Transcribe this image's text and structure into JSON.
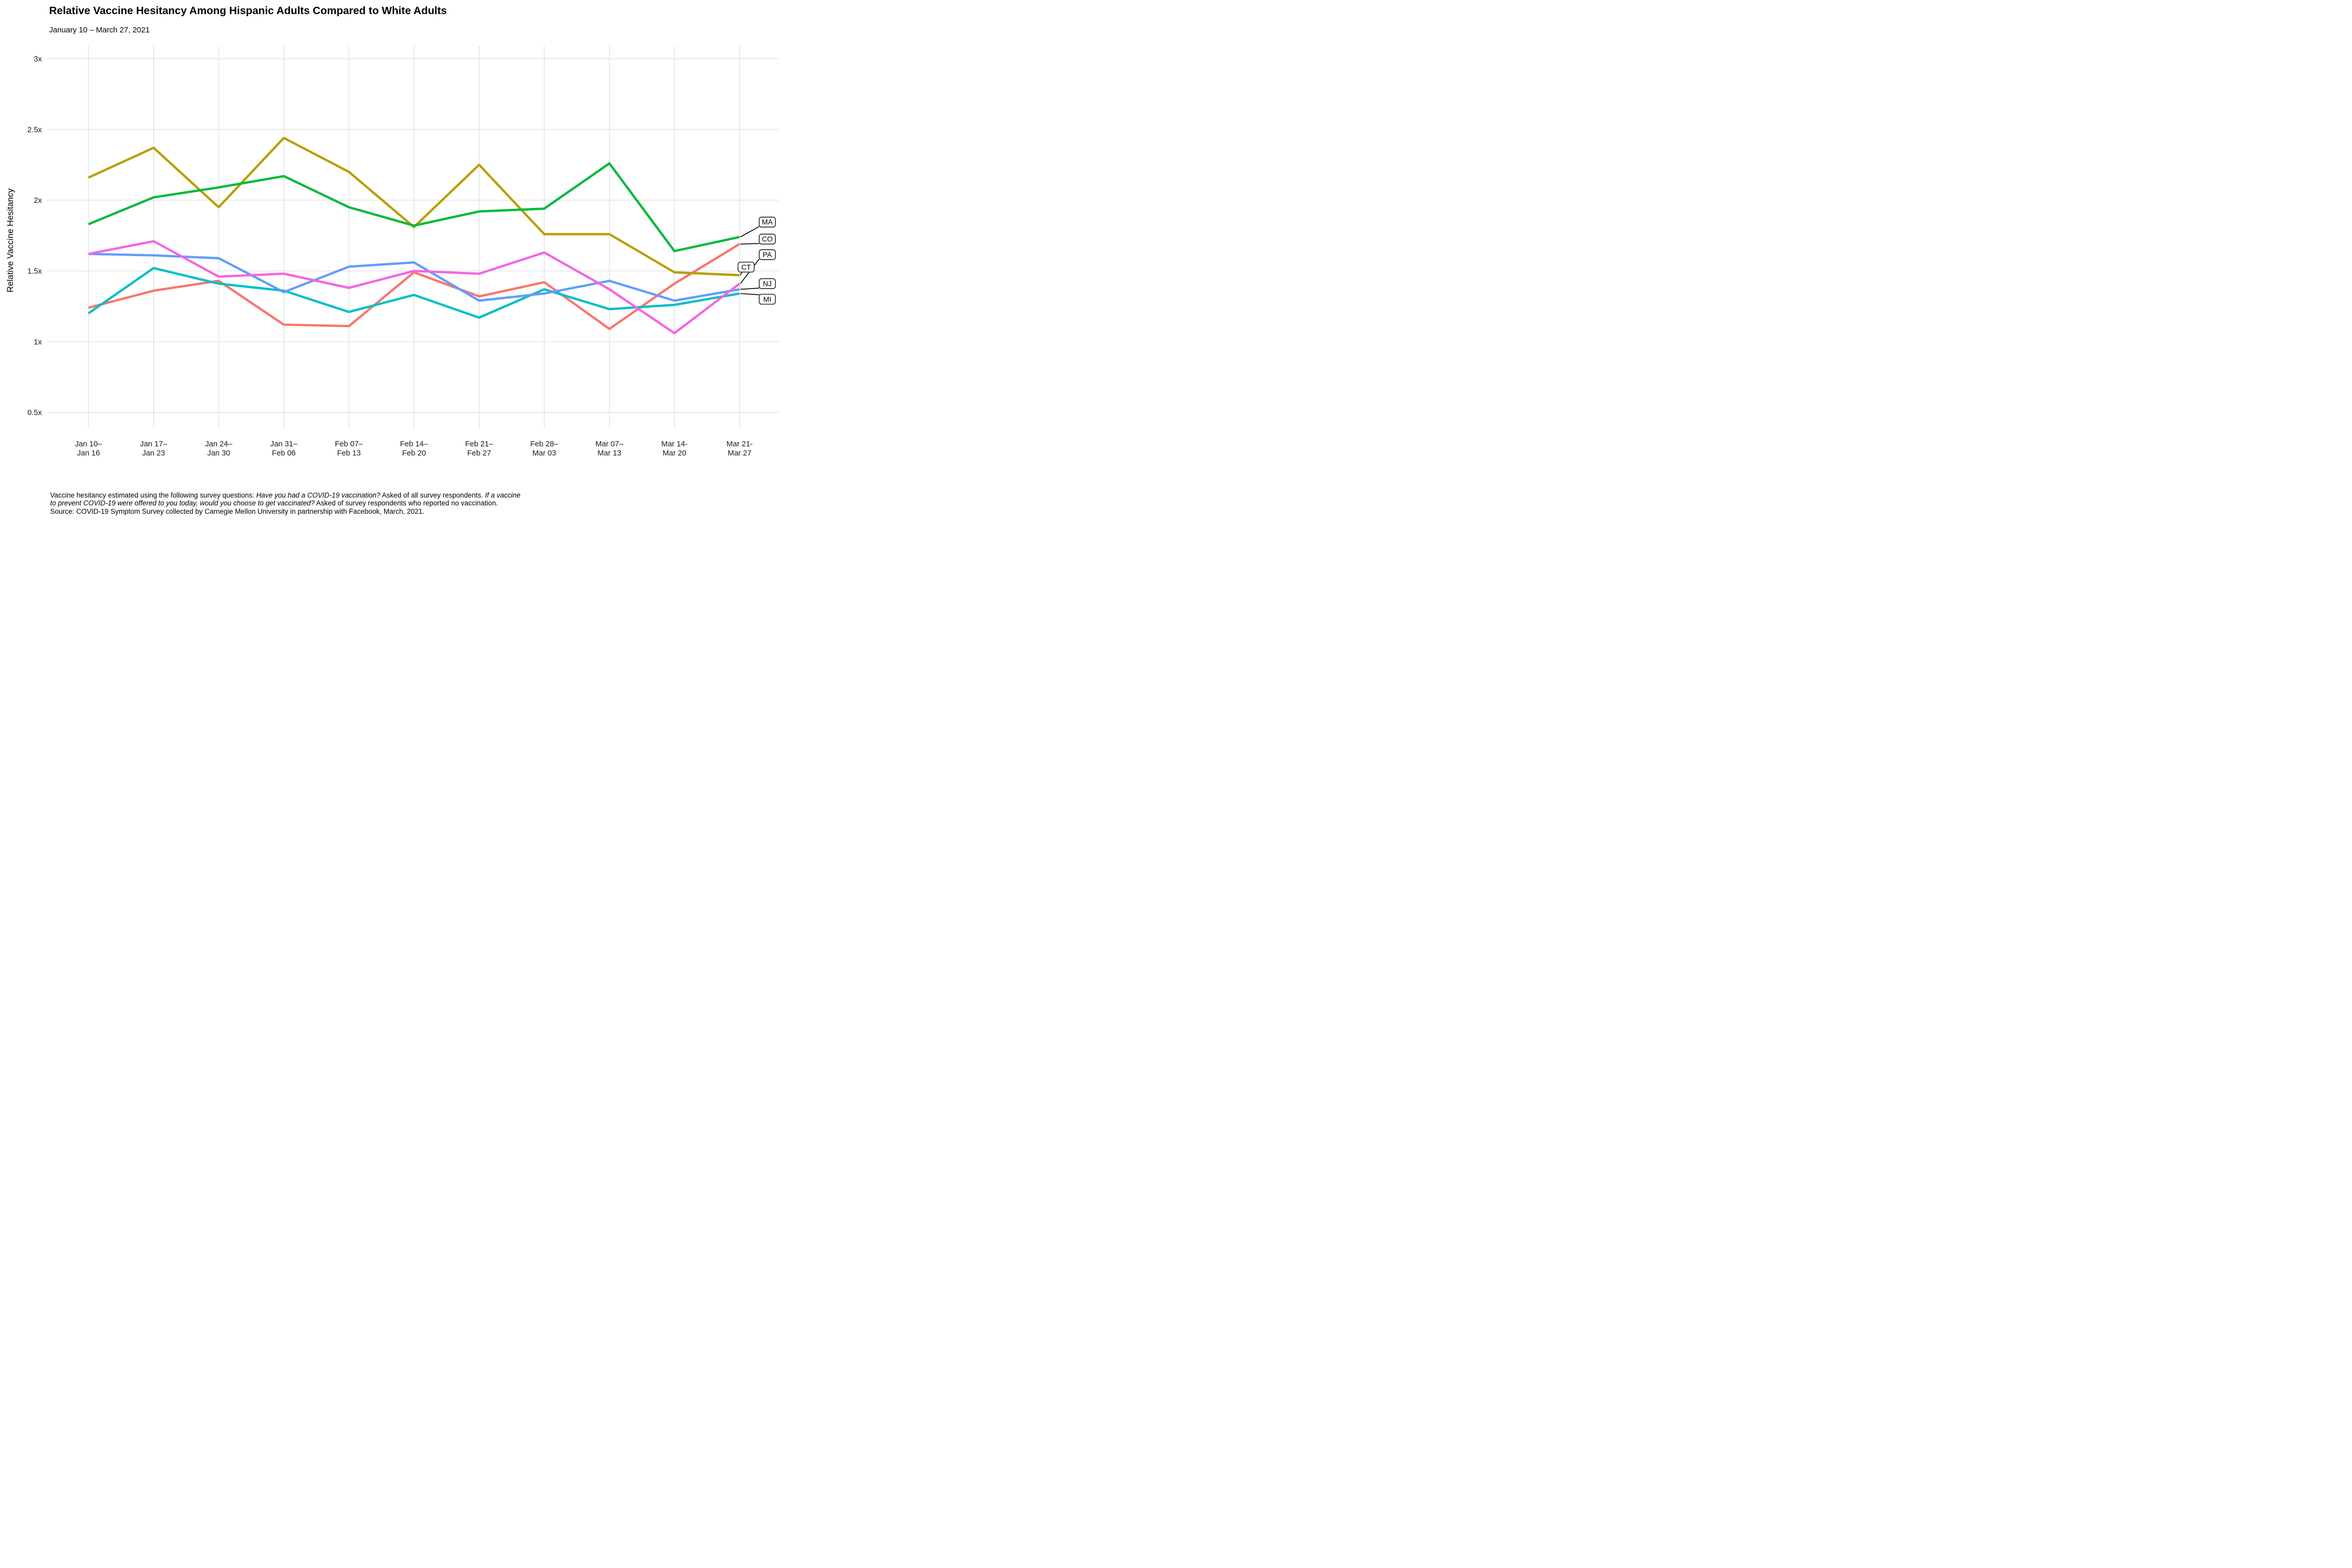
{
  "title": "Relative Vaccine Hesitancy Among Hispanic Adults Compared to White Adults",
  "subtitle": "January 10 – March 27, 2021",
  "footnote_lines": [
    [
      {
        "t": "Vaccine hesitancy estimated using the following survey questions: "
      },
      {
        "t": "Have you had a COVID-19 vaccination?",
        "i": true
      },
      {
        "t": " Asked of all survey respondents. "
      },
      {
        "t": "If a vaccine",
        "i": true
      }
    ],
    [
      {
        "t": "to prevent COVID-19 were offered to you today, would you choose to get vaccinated?",
        "i": true
      },
      {
        "t": " Asked of survey respondents who reported no vaccination."
      }
    ],
    [
      {
        "t": "Source: COVID-19 Symptom Survey collected by Carnegie Mellon University in partnership with Facebook, March, 2021."
      }
    ]
  ],
  "chart_data": {
    "type": "line",
    "title": "Relative Vaccine Hesitancy Among Hispanic Adults Compared to White Adults",
    "subtitle": "January 10 – March 27, 2021",
    "xlabel": "",
    "ylabel": "Relative Vaccine Hesitancy",
    "ylim": [
      0.5,
      3
    ],
    "grid": true,
    "legend_position": "right-edge-labels",
    "grid_color": "#e4e4e4",
    "label_box_color": "#000000",
    "y_ticks": [
      {
        "value": 0.5,
        "label": "0.5x"
      },
      {
        "value": 1,
        "label": "1x"
      },
      {
        "value": 1.5,
        "label": "1.5x"
      },
      {
        "value": 2,
        "label": "2x"
      },
      {
        "value": 2.5,
        "label": "2.5x"
      },
      {
        "value": 3,
        "label": "3x"
      }
    ],
    "x_tick_labels": [
      {
        "top": "Jan 10–",
        "bottom": "Jan 16"
      },
      {
        "top": "Jan 17–",
        "bottom": "Jan 23"
      },
      {
        "top": "Jan 24–",
        "bottom": "Jan 30"
      },
      {
        "top": "Jan 31–",
        "bottom": "Feb 06"
      },
      {
        "top": "Feb 07–",
        "bottom": "Feb 13"
      },
      {
        "top": "Feb 14–",
        "bottom": "Feb 20"
      },
      {
        "top": "Feb 21–",
        "bottom": "Feb 27"
      },
      {
        "top": "Feb 28–",
        "bottom": "Mar 03"
      },
      {
        "top": "Mar 07–",
        "bottom": "Mar 13"
      },
      {
        "top": "Mar 14-",
        "bottom": "Mar 20"
      },
      {
        "top": "Mar 21-",
        "bottom": "Mar 27"
      }
    ],
    "series": [
      {
        "name": "CO",
        "color": "#F8766D",
        "values": [
          1.24,
          1.36,
          1.43,
          1.12,
          1.11,
          1.49,
          1.32,
          1.42,
          1.09,
          1.41,
          1.69
        ]
      },
      {
        "name": "CT",
        "color": "#B79F00",
        "values": [
          2.16,
          2.37,
          1.95,
          2.44,
          2.2,
          1.81,
          2.25,
          1.76,
          1.76,
          1.49,
          1.47
        ]
      },
      {
        "name": "MA",
        "color": "#00BA38",
        "values": [
          1.83,
          2.02,
          2.09,
          2.17,
          1.95,
          1.82,
          1.92,
          1.94,
          2.26,
          1.64,
          1.74
        ]
      },
      {
        "name": "MI",
        "color": "#00BFC4",
        "values": [
          1.2,
          1.52,
          1.41,
          1.36,
          1.21,
          1.33,
          1.17,
          1.37,
          1.23,
          1.26,
          1.34
        ]
      },
      {
        "name": "NJ",
        "color": "#619CFF",
        "values": [
          1.62,
          1.61,
          1.59,
          1.35,
          1.53,
          1.56,
          1.29,
          1.34,
          1.43,
          1.29,
          1.37
        ]
      },
      {
        "name": "PA",
        "color": "#F564E3",
        "values": [
          1.62,
          1.71,
          1.46,
          1.48,
          1.38,
          1.5,
          1.48,
          1.63,
          1.37,
          1.06,
          1.41
        ]
      }
    ],
    "annotations": [
      {
        "series": "MA",
        "label": "MA",
        "label_v": 1.845,
        "inner": false
      },
      {
        "series": "CO",
        "label": "CO",
        "label_v": 1.725,
        "inner": false
      },
      {
        "series": "PA",
        "label": "PA",
        "label_v": 1.615,
        "inner": false
      },
      {
        "series": "CT",
        "label": "CT",
        "label_v": 1.527,
        "inner": true
      },
      {
        "series": "NJ",
        "label": "NJ",
        "label_v": 1.41,
        "inner": false
      },
      {
        "series": "MI",
        "label": "MI",
        "label_v": 1.3,
        "inner": false
      }
    ]
  }
}
